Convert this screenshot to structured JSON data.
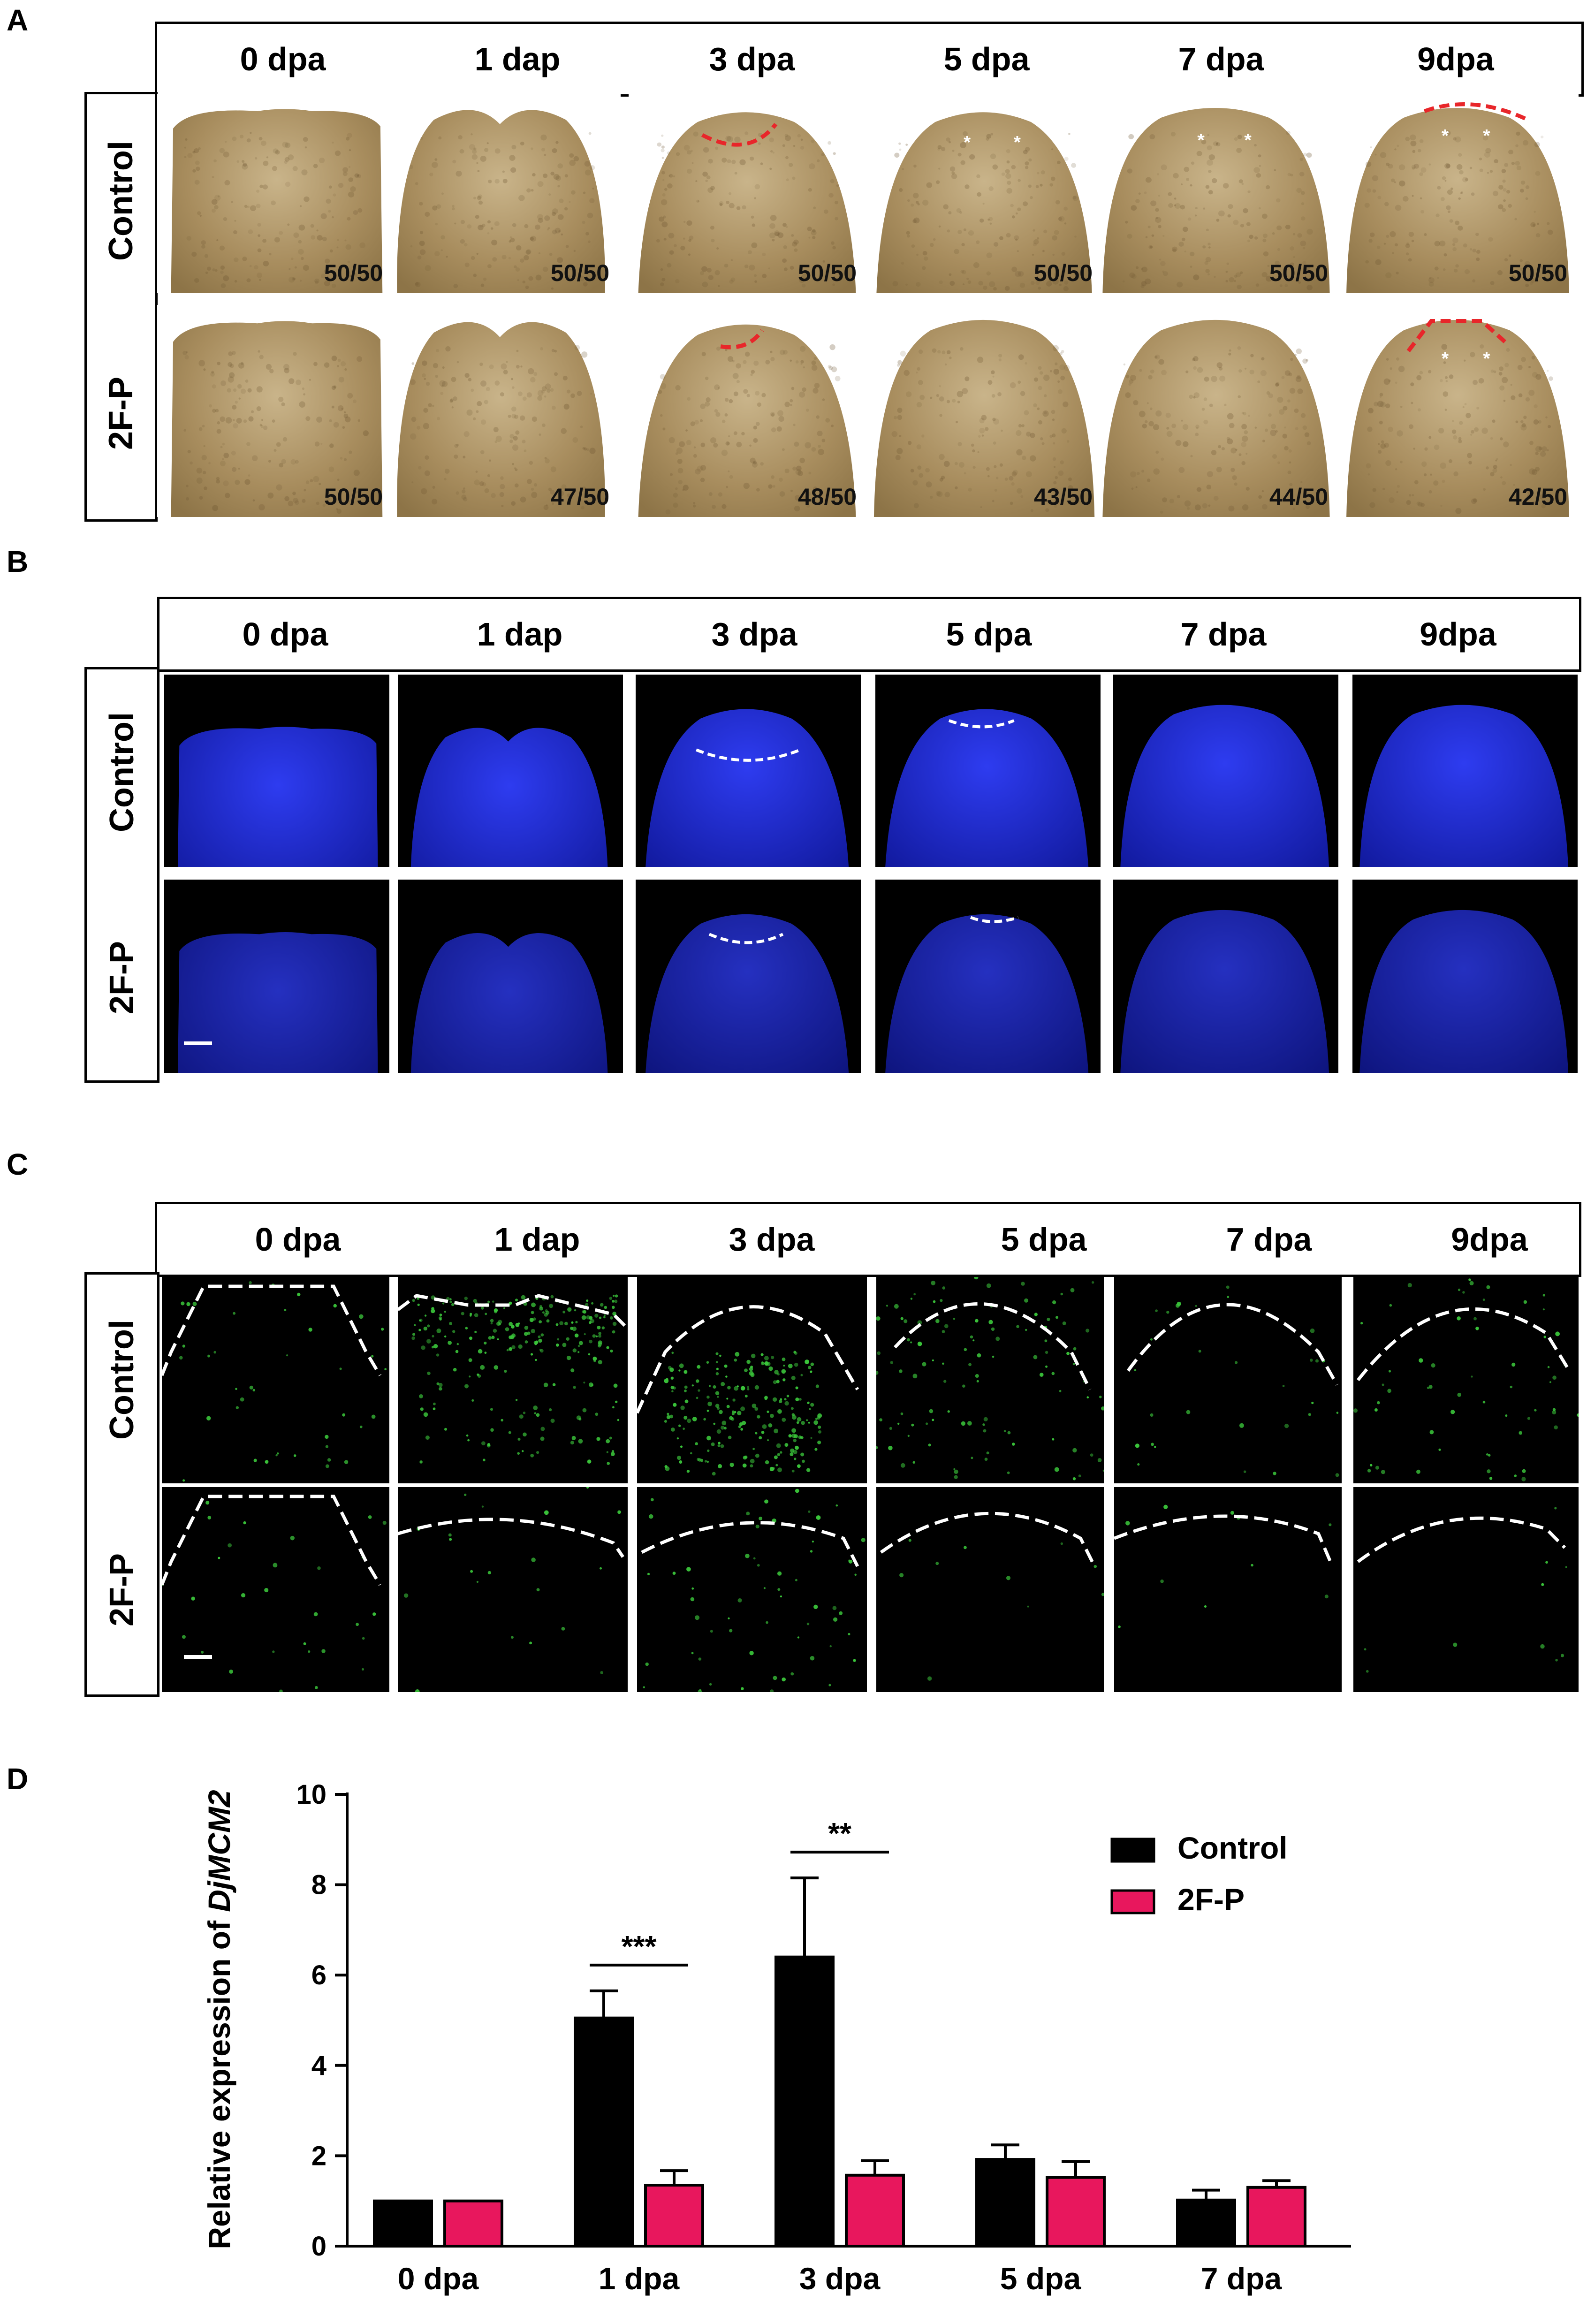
{
  "panel_letters": [
    "A",
    "B",
    "C",
    "D"
  ],
  "timepoints": [
    "0 dpa",
    "1 dap",
    "3 dpa",
    "5 dpa",
    "7 dpa",
    "9dpa"
  ],
  "rows": [
    "Control",
    "2F-P"
  ],
  "panel_a_counts": {
    "control": [
      "50/50",
      "50/50",
      "50/50",
      "50/50",
      "50/50",
      "50/50"
    ],
    "treated": [
      "50/50",
      "47/50",
      "48/50",
      "43/50",
      "44/50",
      "42/50"
    ]
  },
  "colors": {
    "control": "#000000",
    "treated": "#e8175d",
    "dashed_red": "#e8262a",
    "dashed_white": "#ffffff",
    "nuclear_blue": "#1b2ad6",
    "edu_green": "#3ac43a"
  },
  "chart_data": {
    "type": "bar",
    "categories": [
      "0 dpa",
      "1 dpa",
      "3 dpa",
      "5 dpa",
      "7 dpa"
    ],
    "series": [
      {
        "name": "Control",
        "values": [
          1.0,
          5.05,
          6.4,
          1.92,
          1.02
        ],
        "errors": [
          0.0,
          0.6,
          1.75,
          0.32,
          0.22
        ]
      },
      {
        "name": "2F-P",
        "values": [
          1.0,
          1.35,
          1.57,
          1.52,
          1.3
        ],
        "errors": [
          0.0,
          0.32,
          0.32,
          0.35,
          0.15
        ]
      }
    ],
    "ylabel_prefix": "Relative expression of ",
    "ylabel_gene": "DjMCM2",
    "ylim": [
      0,
      10
    ],
    "yticks": [
      0,
      2,
      4,
      6,
      8,
      10
    ],
    "significance": [
      {
        "category": "1 dpa",
        "label": "***"
      },
      {
        "category": "3 dpa",
        "label": "**"
      }
    ],
    "legend_position": "top-right",
    "grid": false
  }
}
